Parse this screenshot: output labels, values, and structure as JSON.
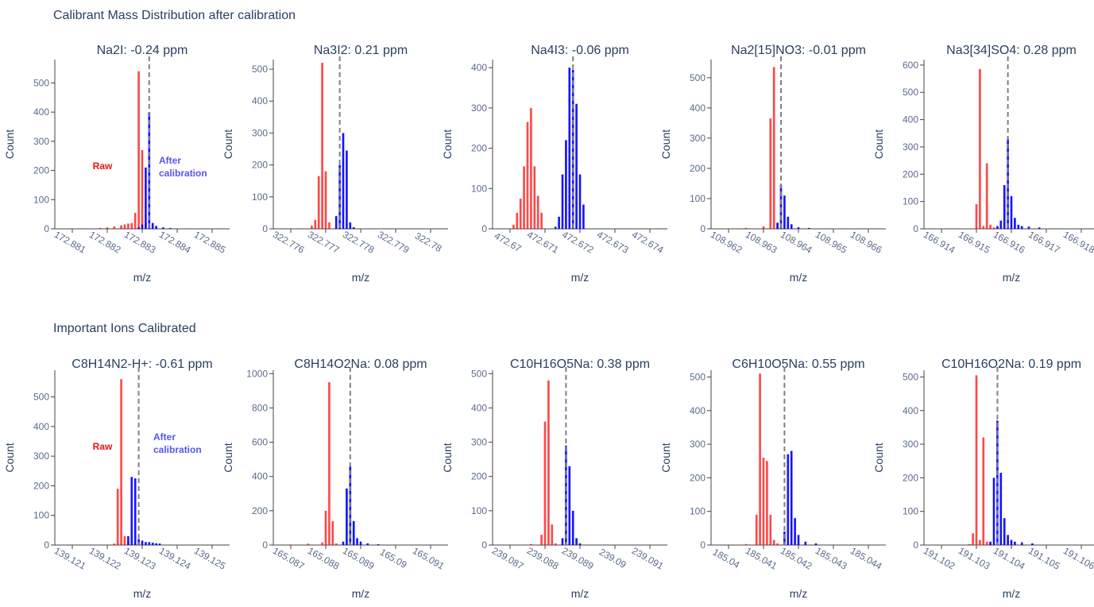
{
  "colors": {
    "raw": "#ff0000",
    "after": "#0000ff",
    "raw_text": "#ee1111",
    "after_text": "#5555ee",
    "reference_line": "#808080"
  },
  "sections": [
    {
      "title": "Calibrant Mass Distribution after calibration"
    },
    {
      "title": "Important Ions Calibrated"
    }
  ],
  "chart_data": [
    {
      "type": "bar",
      "title": "Na2I: -0.24 ppm",
      "xlabel": "m/z",
      "ylabel": "Count",
      "xlim": [
        172.8805,
        172.8855
      ],
      "ylim": [
        0,
        580
      ],
      "xticks": [
        "172.881",
        "172.882",
        "172.883",
        "172.884",
        "172.885"
      ],
      "yticks": [
        0,
        100,
        200,
        300,
        400,
        500
      ],
      "reference_mz": 172.8832,
      "annotations": [
        {
          "text": "Raw",
          "series": "raw"
        },
        {
          "text": "After calibration",
          "series": "after"
        }
      ],
      "series": [
        {
          "name": "raw",
          "x": [
            172.8818,
            172.882,
            172.8822,
            172.8824,
            172.8825,
            172.8826,
            172.8827,
            172.8828,
            172.8829,
            172.883,
            172.8831
          ],
          "y": [
            3,
            5,
            8,
            12,
            15,
            18,
            20,
            55,
            540,
            270,
            20
          ]
        },
        {
          "name": "after",
          "x": [
            172.8829,
            172.883,
            172.8831,
            172.8832,
            172.8833,
            172.8834,
            172.8836,
            172.8838
          ],
          "y": [
            5,
            15,
            210,
            400,
            20,
            10,
            5,
            3
          ]
        }
      ]
    },
    {
      "type": "bar",
      "title": "Na3I2: 0.21 ppm",
      "xlabel": "m/z",
      "ylabel": "Count",
      "xlim": [
        322.7755,
        322.7805
      ],
      "ylim": [
        0,
        530
      ],
      "xticks": [
        "322.776",
        "322.777",
        "322.778",
        "322.779",
        "322.78"
      ],
      "yticks": [
        0,
        100,
        200,
        300,
        400,
        500
      ],
      "reference_mz": 322.7774,
      "series": [
        {
          "name": "raw",
          "x": [
            322.7766,
            322.7767,
            322.7768,
            322.7769,
            322.777,
            322.7771
          ],
          "y": [
            10,
            28,
            165,
            520,
            180,
            20
          ]
        },
        {
          "name": "after",
          "x": [
            322.7773,
            322.7774,
            322.7775,
            322.7776,
            322.7777,
            322.7778
          ],
          "y": [
            40,
            200,
            300,
            245,
            20,
            5
          ]
        }
      ]
    },
    {
      "type": "bar",
      "title": "Na4I3: -0.06 ppm",
      "xlabel": "m/z",
      "ylabel": "Count",
      "xlim": [
        472.6695,
        472.6745
      ],
      "ylim": [
        0,
        420
      ],
      "xticks": [
        "472.67",
        "472.671",
        "472.672",
        "472.673",
        "472.674"
      ],
      "yticks": [
        0,
        100,
        200,
        300,
        400
      ],
      "reference_mz": 472.6718,
      "series": [
        {
          "name": "raw",
          "x": [
            472.6701,
            472.6702,
            472.6703,
            472.6704,
            472.6705,
            472.6706,
            472.6707,
            472.6708,
            472.6709
          ],
          "y": [
            10,
            40,
            75,
            155,
            265,
            300,
            155,
            82,
            40
          ]
        },
        {
          "name": "after",
          "x": [
            472.6713,
            472.6714,
            472.6715,
            472.6716,
            472.6717,
            472.6718,
            472.6719,
            472.672,
            472.6721
          ],
          "y": [
            5,
            30,
            135,
            220,
            400,
            395,
            310,
            135,
            60
          ]
        }
      ]
    },
    {
      "type": "bar",
      "title": "Na2[15]NO3: -0.01 ppm",
      "xlabel": "m/z",
      "ylabel": "Count",
      "xlim": [
        108.9615,
        108.9665
      ],
      "ylim": [
        0,
        560
      ],
      "xticks": [
        "108.962",
        "108.963",
        "108.964",
        "108.965",
        "108.966"
      ],
      "yticks": [
        0,
        100,
        200,
        300,
        400,
        500
      ],
      "reference_mz": 108.9635,
      "series": [
        {
          "name": "raw",
          "x": [
            108.9625,
            108.963,
            108.9632,
            108.9633,
            108.9634
          ],
          "y": [
            3,
            8,
            365,
            535,
            20
          ]
        },
        {
          "name": "after",
          "x": [
            108.9634,
            108.9635,
            108.9636,
            108.9637,
            108.9638,
            108.964,
            108.9643
          ],
          "y": [
            20,
            145,
            110,
            40,
            15,
            5,
            3
          ]
        }
      ]
    },
    {
      "type": "bar",
      "title": "Na3[34]SO4: 0.28 ppm",
      "xlabel": "m/z",
      "ylabel": "Count",
      "xlim": [
        166.9135,
        166.9185
      ],
      "ylim": [
        0,
        620
      ],
      "xticks": [
        "166.914",
        "166.915",
        "166.916",
        "166.917",
        "166.918"
      ],
      "yticks": [
        0,
        100,
        200,
        300,
        400,
        500,
        600
      ],
      "reference_mz": 166.9159,
      "series": [
        {
          "name": "raw",
          "x": [
            166.915,
            166.9151,
            166.9152,
            166.9153,
            166.9154,
            166.9155
          ],
          "y": [
            90,
            585,
            10,
            240,
            15,
            5
          ]
        },
        {
          "name": "after",
          "x": [
            166.9156,
            166.9157,
            166.9158,
            166.9159,
            166.916,
            166.9161,
            166.9162,
            166.9163,
            166.9165,
            166.9168
          ],
          "y": [
            10,
            30,
            160,
            330,
            120,
            40,
            15,
            10,
            8,
            5
          ]
        }
      ]
    },
    {
      "type": "bar",
      "title": "C8H14N2-H+: -0.61 ppm",
      "xlabel": "m/z",
      "ylabel": "Count",
      "xlim": [
        139.1205,
        139.1255
      ],
      "ylim": [
        0,
        590
      ],
      "xticks": [
        "139.121",
        "139.122",
        "139.123",
        "139.124",
        "139.125"
      ],
      "yticks": [
        0,
        100,
        200,
        300,
        400,
        500
      ],
      "reference_mz": 139.1229,
      "annotations": [
        {
          "text": "Raw",
          "series": "raw"
        },
        {
          "text": "After calibration",
          "series": "after"
        }
      ],
      "series": [
        {
          "name": "raw",
          "x": [
            139.1222,
            139.1223,
            139.1224,
            139.1225,
            139.1226,
            139.1228
          ],
          "y": [
            5,
            190,
            560,
            30,
            10,
            5
          ]
        },
        {
          "name": "after",
          "x": [
            139.1226,
            139.1227,
            139.1228,
            139.1229,
            139.123,
            139.1231,
            139.1232,
            139.1233,
            139.1234,
            139.1235
          ],
          "y": [
            30,
            230,
            225,
            20,
            15,
            10,
            10,
            8,
            6,
            5
          ]
        }
      ]
    },
    {
      "type": "bar",
      "title": "C8H14O2Na: 0.08 ppm",
      "xlabel": "m/z",
      "ylabel": "Count",
      "xlim": [
        165.0865,
        165.0915
      ],
      "ylim": [
        0,
        1020
      ],
      "xticks": [
        "165.087",
        "165.088",
        "165.089",
        "165.09",
        "165.091"
      ],
      "yticks": [
        0,
        200,
        400,
        600,
        800,
        1000
      ],
      "reference_mz": 165.0887,
      "series": [
        {
          "name": "raw",
          "x": [
            165.087,
            165.0875,
            165.0879,
            165.088,
            165.0881,
            165.0882,
            165.0883
          ],
          "y": [
            3,
            8,
            15,
            200,
            950,
            140,
            10
          ]
        },
        {
          "name": "after",
          "x": [
            165.0885,
            165.0886,
            165.0887,
            165.0888,
            165.0889,
            165.089,
            165.0892,
            165.0895
          ],
          "y": [
            20,
            330,
            460,
            140,
            40,
            20,
            10,
            5
          ]
        }
      ]
    },
    {
      "type": "bar",
      "title": "C10H16O5Na: 0.38 ppm",
      "xlabel": "m/z",
      "ylabel": "Count",
      "xlim": [
        239.0865,
        239.0915
      ],
      "ylim": [
        0,
        510
      ],
      "xticks": [
        "239.087",
        "239.088",
        "239.089",
        "239.09",
        "239.091"
      ],
      "yticks": [
        0,
        100,
        200,
        300,
        400,
        500
      ],
      "reference_mz": 239.0886,
      "series": [
        {
          "name": "raw",
          "x": [
            239.0876,
            239.0879,
            239.088,
            239.0881,
            239.0882,
            239.0883
          ],
          "y": [
            3,
            30,
            360,
            480,
            60,
            5
          ]
        },
        {
          "name": "after",
          "x": [
            239.0885,
            239.0886,
            239.0887,
            239.0888,
            239.0889,
            239.089
          ],
          "y": [
            20,
            290,
            230,
            100,
            20,
            5
          ]
        }
      ]
    },
    {
      "type": "bar",
      "title": "C6H10O5Na: 0.55 ppm",
      "xlabel": "m/z",
      "ylabel": "Count",
      "xlim": [
        185.0395,
        185.0445
      ],
      "ylim": [
        0,
        520
      ],
      "xticks": [
        "185.04",
        "185.041",
        "185.042",
        "185.043",
        "185.044"
      ],
      "yticks": [
        0,
        100,
        200,
        300,
        400,
        500
      ],
      "reference_mz": 185.0416,
      "series": [
        {
          "name": "raw",
          "x": [
            185.0405,
            185.0408,
            185.0409,
            185.041,
            185.0411,
            185.0412,
            185.0413,
            185.0414
          ],
          "y": [
            3,
            90,
            510,
            260,
            250,
            90,
            15,
            5
          ]
        },
        {
          "name": "after",
          "x": [
            185.0416,
            185.0417,
            185.0418,
            185.0419,
            185.042,
            185.0422,
            185.0425
          ],
          "y": [
            40,
            270,
            280,
            80,
            30,
            10,
            5
          ]
        }
      ]
    },
    {
      "type": "bar",
      "title": "C10H16O2Na: 0.19 ppm",
      "xlabel": "m/z",
      "ylabel": "Count",
      "xlim": [
        191.1015,
        191.1065
      ],
      "ylim": [
        0,
        520
      ],
      "xticks": [
        "191.102",
        "191.103",
        "191.104",
        "191.105",
        "191.106"
      ],
      "yticks": [
        0,
        100,
        200,
        300,
        400,
        500
      ],
      "reference_mz": 191.1036,
      "series": [
        {
          "name": "raw",
          "x": [
            191.1028,
            191.1029,
            191.103,
            191.1031,
            191.1032,
            191.1033,
            191.1034
          ],
          "y": [
            3,
            35,
            505,
            15,
            320,
            10,
            5
          ]
        },
        {
          "name": "after",
          "x": [
            191.1034,
            191.1035,
            191.1036,
            191.1037,
            191.1038,
            191.1039,
            191.104,
            191.1041,
            191.1043,
            191.1046
          ],
          "y": [
            10,
            200,
            370,
            215,
            80,
            30,
            15,
            10,
            8,
            5
          ]
        }
      ]
    }
  ]
}
